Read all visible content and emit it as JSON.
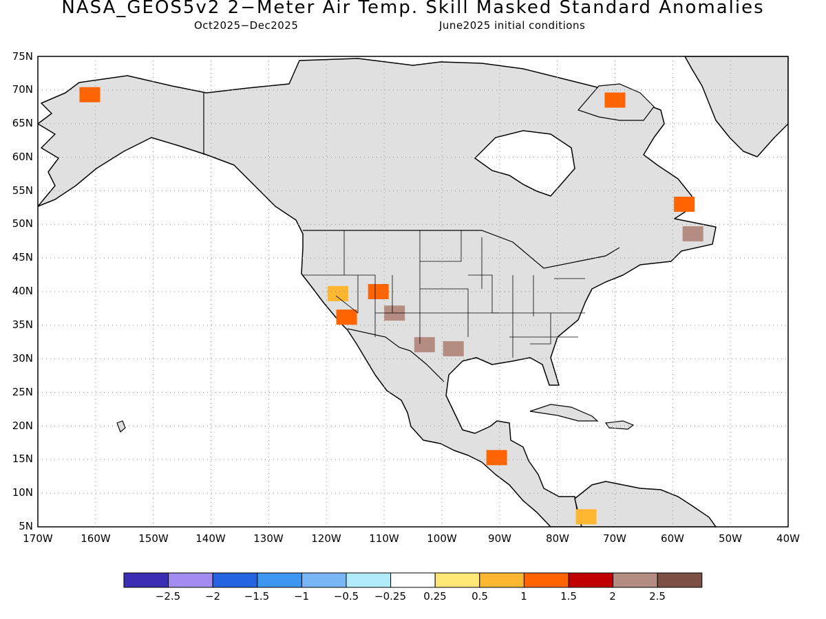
{
  "title": "NASA_GEOS5v2 2−Meter Air Temp. Skill Masked Standard Anomalies",
  "subtitle_left": "Oct2025−Dec2025",
  "subtitle_right": "June2025 initial conditions",
  "map": {
    "lon_range": [
      -170,
      -40
    ],
    "lat_range": [
      5,
      75
    ],
    "lon_ticks": [
      "170W",
      "160W",
      "150W",
      "140W",
      "130W",
      "120W",
      "110W",
      "100W",
      "90W",
      "80W",
      "70W",
      "60W",
      "50W",
      "40W"
    ],
    "lat_ticks": [
      "5N",
      "10N",
      "15N",
      "20N",
      "25N",
      "30N",
      "35N",
      "40N",
      "45N",
      "50N",
      "55N",
      "60N",
      "65N",
      "70N",
      "75N"
    ],
    "grid": true,
    "land_color": "#e0e0e0"
  },
  "legend": {
    "colors": [
      "#3b2eb3",
      "#a28cf2",
      "#2464e0",
      "#3c96f0",
      "#78b6f5",
      "#b2ecfa",
      "#ffffff",
      "#ffe878",
      "#ffb732",
      "#ff6400",
      "#c00000",
      "#b48c82",
      "#7d5046"
    ],
    "labels": [
      "−2.5",
      "−2",
      "−1.5",
      "−1",
      "−0.5",
      "−0.25",
      "0.25",
      "0.5",
      "1",
      "1.5",
      "2",
      "2.5"
    ]
  },
  "anomaly_patches": [
    {
      "lon": -108.2,
      "lat": 36.8,
      "value": 2.2
    },
    {
      "lon": -103.0,
      "lat": 32.1,
      "value": 2.2
    },
    {
      "lon": -98.0,
      "lat": 31.5,
      "value": 2.2
    },
    {
      "lon": -111.0,
      "lat": 40.0,
      "value": 1.3
    },
    {
      "lon": -118.0,
      "lat": 39.7,
      "value": 0.8
    },
    {
      "lon": -116.5,
      "lat": 36.2,
      "value": 1.3
    },
    {
      "lon": -161.0,
      "lat": 69.3,
      "value": 1.3
    },
    {
      "lon": -70.0,
      "lat": 68.5,
      "value": 1.3
    },
    {
      "lon": -56.5,
      "lat": 48.6,
      "value": 2.2
    },
    {
      "lon": -58.0,
      "lat": 53.0,
      "value": 1.3
    },
    {
      "lon": -90.5,
      "lat": 15.3,
      "value": 1.3
    },
    {
      "lon": -75.0,
      "lat": 6.5,
      "value": 0.6
    }
  ]
}
